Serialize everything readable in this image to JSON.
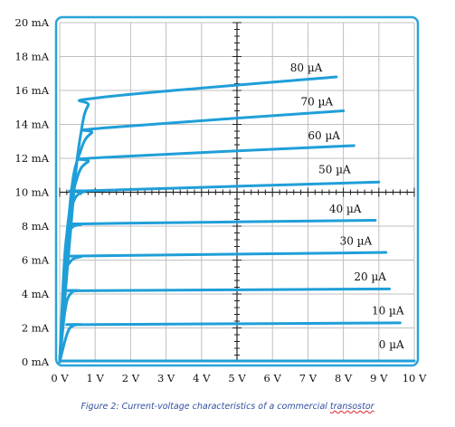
{
  "chart_data": {
    "type": "line",
    "title": "",
    "xlabel": "",
    "ylabel": "",
    "xlim": [
      0,
      10
    ],
    "ylim": [
      0,
      20
    ],
    "x_ticks": [
      {
        "value": 0,
        "label": "0 V"
      },
      {
        "value": 1,
        "label": "1 V"
      },
      {
        "value": 2,
        "label": "2 V"
      },
      {
        "value": 3,
        "label": "3 V"
      },
      {
        "value": 4,
        "label": "4 V"
      },
      {
        "value": 5,
        "label": "5 V"
      },
      {
        "value": 6,
        "label": "6 V"
      },
      {
        "value": 7,
        "label": "7 V"
      },
      {
        "value": 8,
        "label": "8 V"
      },
      {
        "value": 9,
        "label": "9 V"
      },
      {
        "value": 10,
        "label": "10 V"
      }
    ],
    "y_ticks": [
      {
        "value": 0,
        "label": "0 mA"
      },
      {
        "value": 2,
        "label": "2 mA"
      },
      {
        "value": 4,
        "label": "4 mA"
      },
      {
        "value": 6,
        "label": "6 mA"
      },
      {
        "value": 8,
        "label": "8 mA"
      },
      {
        "value": 10,
        "label": "10 mA"
      },
      {
        "value": 12,
        "label": "12 mA"
      },
      {
        "value": 14,
        "label": "14 mA"
      },
      {
        "value": 16,
        "label": "16 mA"
      },
      {
        "value": 18,
        "label": "18 mA"
      },
      {
        "value": 20,
        "label": "20 mA"
      }
    ],
    "grid": true,
    "series": [
      {
        "name": "0 µA",
        "x": [
          0,
          10
        ],
        "y": [
          0.05,
          0.05
        ],
        "label_x": 9.0,
        "label_y": 0.6
      },
      {
        "name": "10 µA",
        "x": [
          0,
          0.2,
          0.35,
          0.6,
          1.0,
          9.6
        ],
        "y": [
          0,
          1.6,
          2.1,
          2.2,
          2.2,
          2.3
        ],
        "label_x": 8.8,
        "label_y": 2.6
      },
      {
        "name": "20 µA",
        "x": [
          0,
          0.15,
          0.3,
          0.55,
          1.0,
          9.3
        ],
        "y": [
          0,
          3.0,
          4.0,
          4.2,
          4.2,
          4.3
        ],
        "label_x": 8.3,
        "label_y": 4.6
      },
      {
        "name": "30 µA",
        "x": [
          0,
          0.15,
          0.3,
          0.6,
          1.0,
          9.2
        ],
        "y": [
          0,
          4.8,
          5.9,
          6.2,
          6.25,
          6.45
        ],
        "label_x": 7.9,
        "label_y": 6.7
      },
      {
        "name": "40 µA",
        "x": [
          0,
          0.15,
          0.3,
          0.6,
          1.0,
          8.9
        ],
        "y": [
          0,
          6.5,
          7.8,
          8.1,
          8.15,
          8.35
        ],
        "label_x": 7.6,
        "label_y": 8.6
      },
      {
        "name": "50 µA",
        "x": [
          0,
          0.2,
          0.4,
          0.7,
          1.0,
          9.0
        ],
        "y": [
          0,
          7.5,
          9.5,
          10.05,
          10.1,
          10.6
        ],
        "label_x": 7.3,
        "label_y": 10.9
      },
      {
        "name": "60 µA",
        "x": [
          0,
          0.25,
          0.5,
          0.8,
          1.2,
          8.3
        ],
        "y": [
          0,
          8.0,
          10.9,
          11.8,
          12.05,
          12.75
        ],
        "label_x": 7.0,
        "label_y": 12.9
      },
      {
        "name": "70 µA",
        "x": [
          0,
          0.3,
          0.6,
          0.9,
          1.3,
          8.0
        ],
        "y": [
          0,
          9.5,
          12.5,
          13.5,
          13.8,
          14.8
        ],
        "label_x": 6.8,
        "label_y": 14.9
      },
      {
        "name": "80 µA",
        "x": [
          0,
          0.4,
          0.6,
          0.8,
          1.2,
          7.8
        ],
        "y": [
          0,
          10.0,
          13.5,
          15.1,
          15.6,
          16.8
        ],
        "label_x": 6.5,
        "label_y": 16.9
      }
    ]
  },
  "caption": {
    "text_before": "Figure 2: Current-voltage characteristics of a commercial ",
    "text_misspelled": "transostor"
  },
  "colors": {
    "curve": "#1f9fd8",
    "grid": "#bfbfbf",
    "axis": "#222222",
    "frame": "#2aa3d9",
    "caption": "#2f4f9e"
  }
}
